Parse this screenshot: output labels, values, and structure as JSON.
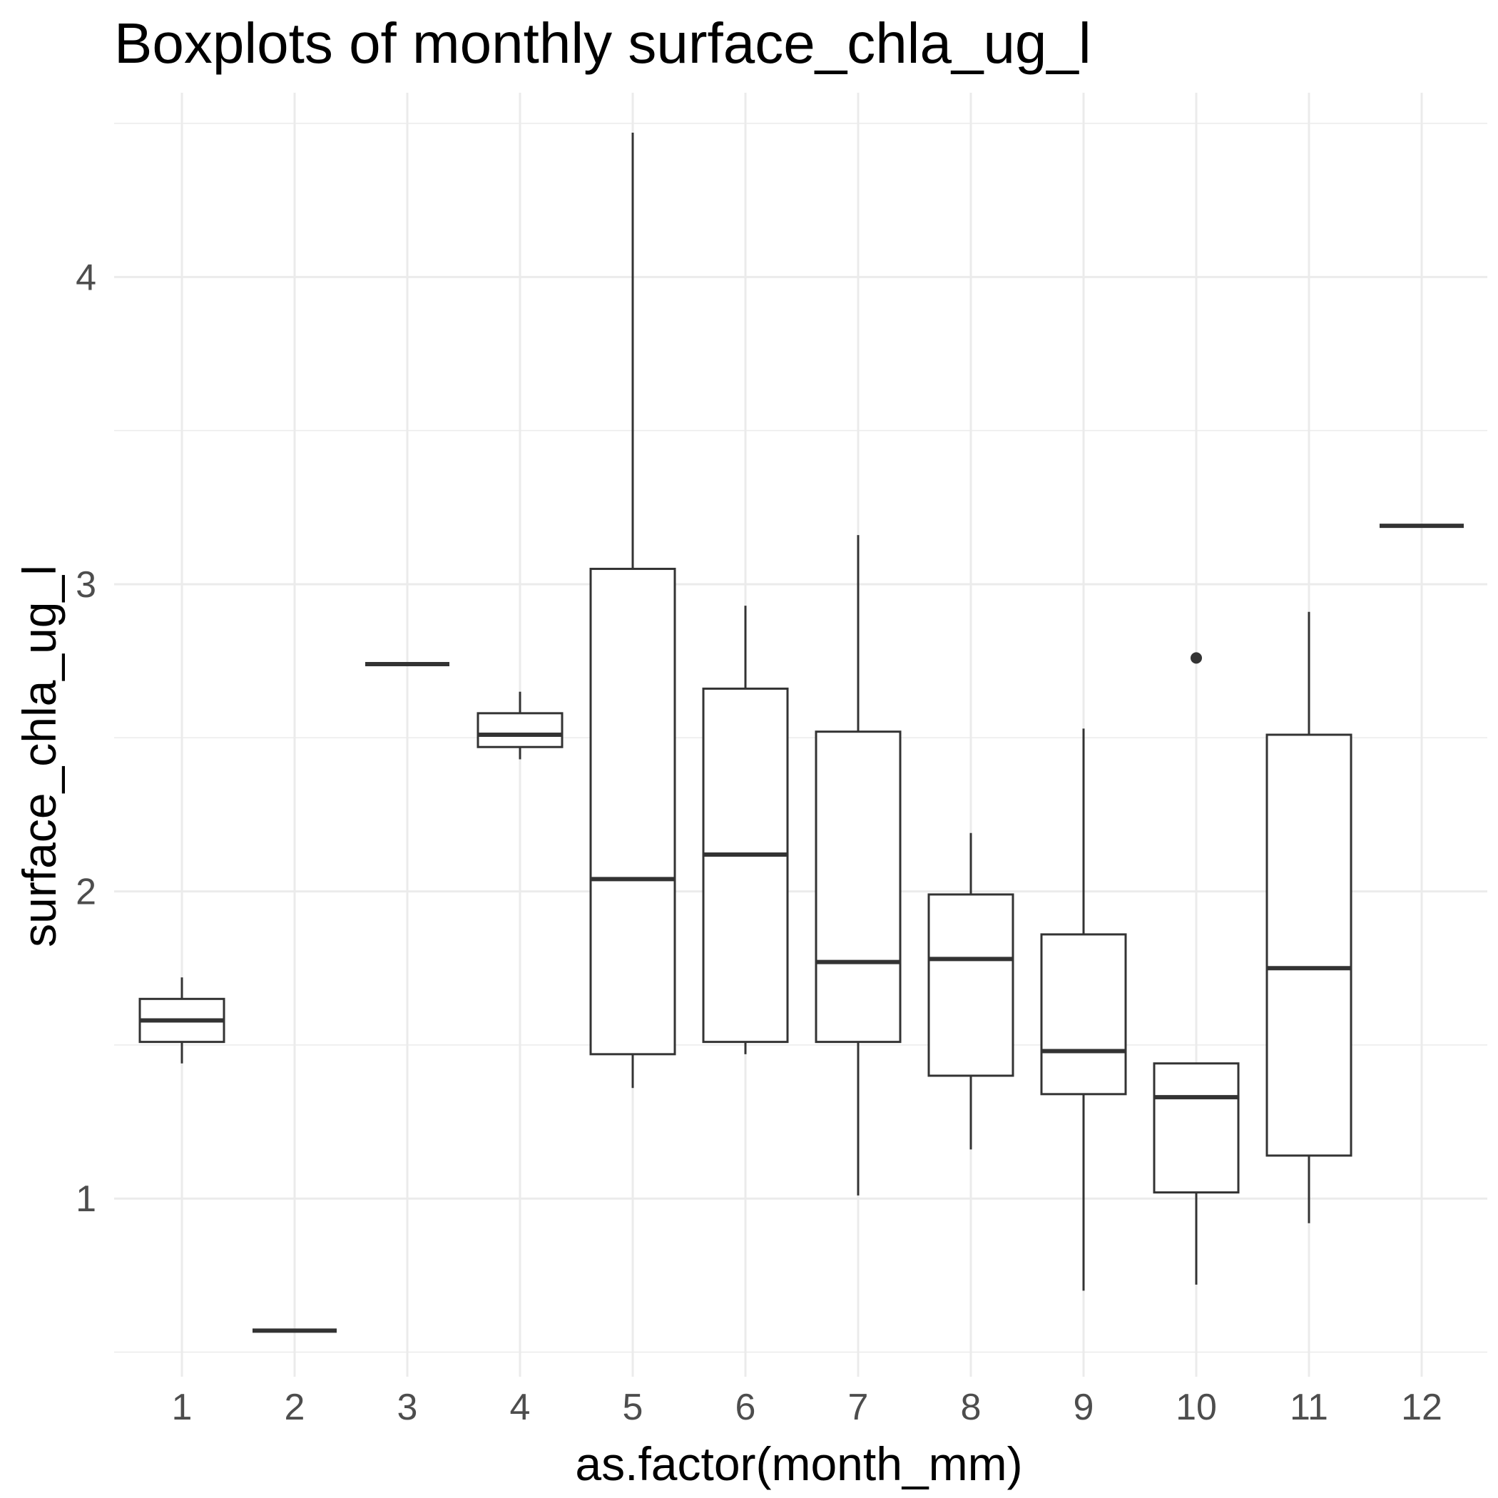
{
  "chart_data": {
    "type": "boxplot",
    "title": "Boxplots of monthly surface_chla_ug_l",
    "xlabel": "as.factor(month_mm)",
    "ylabel": "surface_chla_ug_l",
    "ylim": [
      0.45,
      4.5
    ],
    "y_major_ticks": [
      1,
      2,
      3,
      4
    ],
    "y_minor_ticks": [
      0.5,
      1.5,
      2.5,
      3.5,
      4.5
    ],
    "grid": true,
    "legend": "none",
    "categories": [
      "1",
      "2",
      "3",
      "4",
      "5",
      "6",
      "7",
      "8",
      "9",
      "10",
      "11",
      "12"
    ],
    "boxes": [
      {
        "category": "1",
        "min": 1.44,
        "q1": 1.51,
        "median": 1.58,
        "q3": 1.65,
        "max": 1.72,
        "outliers": []
      },
      {
        "category": "2",
        "min": 0.57,
        "q1": 0.57,
        "median": 0.57,
        "q3": 0.57,
        "max": 0.57,
        "outliers": []
      },
      {
        "category": "3",
        "min": 2.74,
        "q1": 2.74,
        "median": 2.74,
        "q3": 2.74,
        "max": 2.74,
        "outliers": []
      },
      {
        "category": "4",
        "min": 2.43,
        "q1": 2.47,
        "median": 2.51,
        "q3": 2.58,
        "max": 2.65,
        "outliers": []
      },
      {
        "category": "5",
        "min": 1.36,
        "q1": 1.47,
        "median": 2.04,
        "q3": 3.05,
        "max": 4.47,
        "outliers": []
      },
      {
        "category": "6",
        "min": 1.47,
        "q1": 1.51,
        "median": 2.12,
        "q3": 2.66,
        "max": 2.93,
        "outliers": []
      },
      {
        "category": "7",
        "min": 1.01,
        "q1": 1.51,
        "median": 1.77,
        "q3": 2.52,
        "max": 3.16,
        "outliers": []
      },
      {
        "category": "8",
        "min": 1.16,
        "q1": 1.4,
        "median": 1.78,
        "q3": 1.99,
        "max": 2.19,
        "outliers": []
      },
      {
        "category": "9",
        "min": 0.7,
        "q1": 1.34,
        "median": 1.48,
        "q3": 1.86,
        "max": 2.53,
        "outliers": []
      },
      {
        "category": "10",
        "min": 0.72,
        "q1": 1.02,
        "median": 1.33,
        "q3": 1.44,
        "max": 1.44,
        "outliers": [
          2.76
        ]
      },
      {
        "category": "11",
        "min": 0.92,
        "q1": 1.14,
        "median": 1.75,
        "q3": 2.51,
        "max": 2.91,
        "outliers": []
      },
      {
        "category": "12",
        "min": 3.19,
        "q1": 3.19,
        "median": 3.19,
        "q3": 3.19,
        "max": 3.19,
        "outliers": []
      }
    ]
  }
}
